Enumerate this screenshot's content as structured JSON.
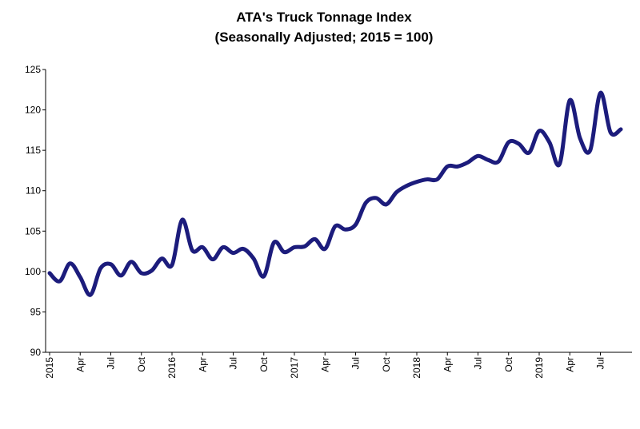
{
  "chart_data": {
    "type": "line",
    "title": "ATA's Truck Tonnage Index",
    "subtitle": "(Seasonally Adjusted; 2015 = 100)",
    "categories": [
      "2015",
      null,
      null,
      "Apr",
      null,
      null,
      "Jul",
      null,
      null,
      "Oct",
      null,
      null,
      "2016",
      null,
      null,
      "Apr",
      null,
      null,
      "Jul",
      null,
      null,
      "Oct",
      null,
      null,
      "2017",
      null,
      null,
      "Apr",
      null,
      null,
      "Jul",
      null,
      null,
      "Oct",
      null,
      null,
      "2018",
      null,
      null,
      "Apr",
      null,
      null,
      "Jul",
      null,
      null,
      "Oct",
      null,
      null,
      "2019",
      null,
      null,
      "Apr",
      null,
      null,
      "Jul",
      null,
      null
    ],
    "series": [
      {
        "name": "Truck Tonnage Index",
        "color": "#1c1c7c",
        "values": [
          99.8,
          98.8,
          101.0,
          99.3,
          97.1,
          100.4,
          100.9,
          99.5,
          101.2,
          99.8,
          100.1,
          101.6,
          100.8,
          106.4,
          102.6,
          103.0,
          101.5,
          103.0,
          102.3,
          102.8,
          101.6,
          99.4,
          103.6,
          102.4,
          103.0,
          103.1,
          104.0,
          102.8,
          105.6,
          105.2,
          105.8,
          108.5,
          109.1,
          108.3,
          109.8,
          110.6,
          111.1,
          111.4,
          111.4,
          113.0,
          113.0,
          113.5,
          114.3,
          113.8,
          113.6,
          116.0,
          115.8,
          114.7,
          117.4,
          116.0,
          113.3,
          121.2,
          116.5,
          115.0,
          122.1,
          117.2,
          117.6
        ]
      }
    ],
    "ylim": [
      90,
      125
    ],
    "yticks": [
      90,
      95,
      100,
      105,
      110,
      115,
      120,
      125
    ],
    "grid": false
  }
}
